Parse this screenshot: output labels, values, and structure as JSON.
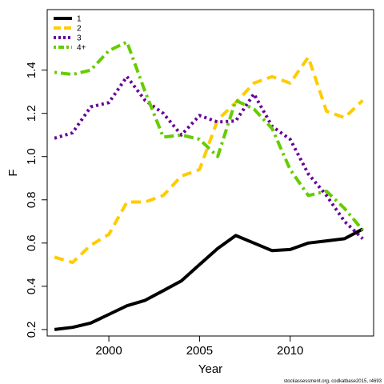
{
  "chart_data": {
    "type": "line",
    "xlabel": "Year",
    "ylabel": "F",
    "xlim": [
      1996.6,
      2014.6
    ],
    "ylim": [
      0.17,
      1.68
    ],
    "x_ticks": [
      2000,
      2005,
      2010
    ],
    "y_ticks": [
      0.2,
      0.4,
      0.6,
      0.8,
      1.0,
      1.2,
      1.4
    ],
    "y_tick_labels": [
      "0.2",
      "0.4",
      "0.6",
      "0.8",
      "1.0",
      "1.2",
      "1.4"
    ],
    "x_tick_labels": [
      "2000",
      "2005",
      "2010"
    ],
    "grid": false,
    "legend_position": "top-left",
    "x": [
      1997,
      1998,
      1999,
      2000,
      2001,
      2002,
      2003,
      2004,
      2005,
      2006,
      2007,
      2008,
      2009,
      2010,
      2011,
      2012,
      2013,
      2014
    ],
    "series": [
      {
        "name": "1",
        "color": "#000000",
        "dash": "solid",
        "values": [
          0.2,
          0.21,
          0.23,
          0.27,
          0.31,
          0.335,
          0.38,
          0.425,
          0.5,
          0.575,
          0.635,
          0.6,
          0.565,
          0.57,
          0.6,
          0.61,
          0.62,
          0.665
        ]
      },
      {
        "name": "2",
        "color": "#FFCC00",
        "dash": "dashed",
        "values": [
          0.535,
          0.51,
          0.59,
          0.64,
          0.79,
          0.79,
          0.82,
          0.91,
          0.94,
          1.17,
          1.25,
          1.34,
          1.37,
          1.34,
          1.46,
          1.21,
          1.18,
          1.26
        ]
      },
      {
        "name": "3",
        "color": "#660099",
        "dash": "dotted",
        "values": [
          1.085,
          1.11,
          1.23,
          1.25,
          1.37,
          1.26,
          1.2,
          1.1,
          1.19,
          1.16,
          1.165,
          1.29,
          1.14,
          1.08,
          0.92,
          0.82,
          0.7,
          0.62
        ]
      },
      {
        "name": "4+",
        "color": "#66CC00",
        "dash": "dotdash",
        "values": [
          1.39,
          1.38,
          1.4,
          1.49,
          1.53,
          1.3,
          1.09,
          1.1,
          1.08,
          1.0,
          1.26,
          1.22,
          1.13,
          0.94,
          0.82,
          0.84,
          0.76,
          0.66
        ]
      }
    ]
  },
  "credit": "stockassessment.org, codkatbase2015, r4693"
}
